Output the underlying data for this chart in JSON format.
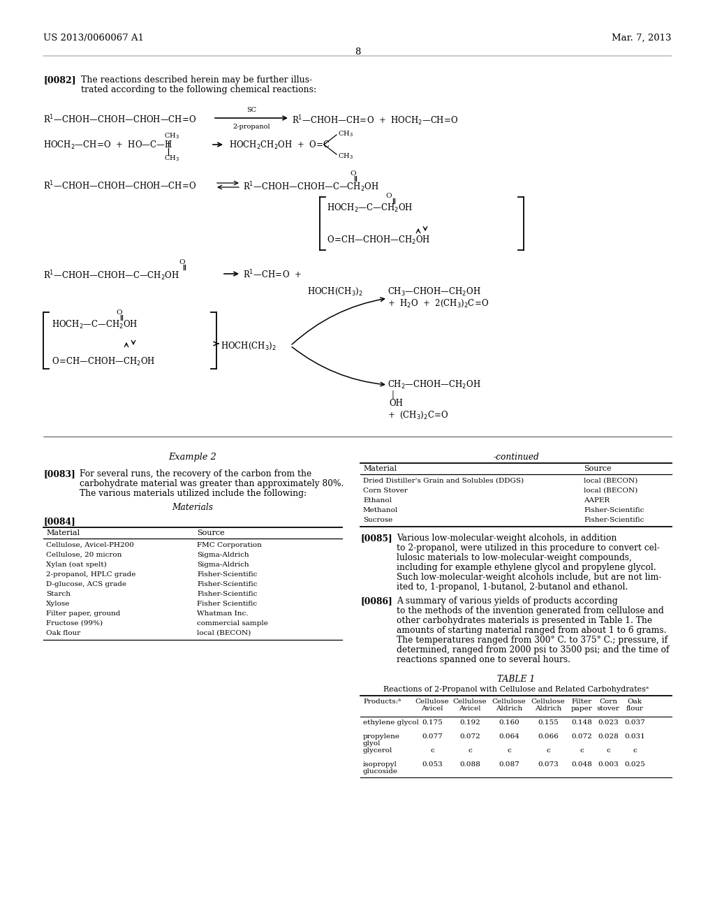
{
  "bg_color": "#ffffff",
  "header_left": "US 2013/0060067 A1",
  "header_right": "Mar. 7, 2013",
  "page_number": "8"
}
